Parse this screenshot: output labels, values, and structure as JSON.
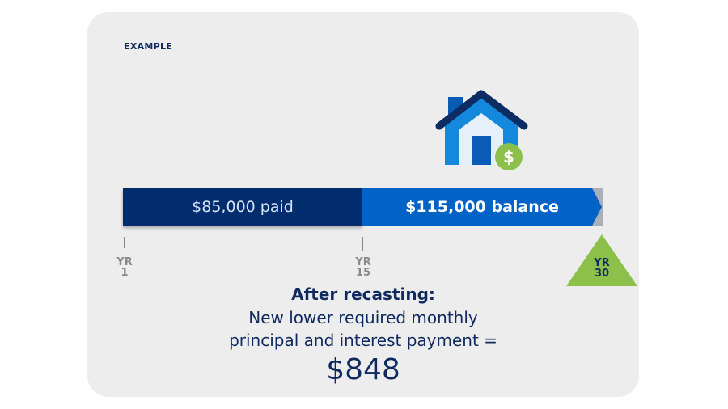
{
  "label": "EXAMPLE",
  "timeline": {
    "paid": "$85,000 paid",
    "balance": "$115,000 balance",
    "markers": [
      {
        "line1": "YR",
        "line2": "1"
      },
      {
        "line1": "YR",
        "line2": "15"
      },
      {
        "line1": "YR",
        "line2": "30"
      }
    ]
  },
  "result": {
    "heading": "After recasting:",
    "line1": "New lower required monthly",
    "line2": "principal and interest payment =",
    "amount": "$848"
  },
  "icons": [
    "house-icon",
    "dollar-icon"
  ],
  "colors": {
    "paid": "#012c6e",
    "balance": "#0362c6",
    "marker": "#8cc04a",
    "text": "#0f2a5e"
  }
}
